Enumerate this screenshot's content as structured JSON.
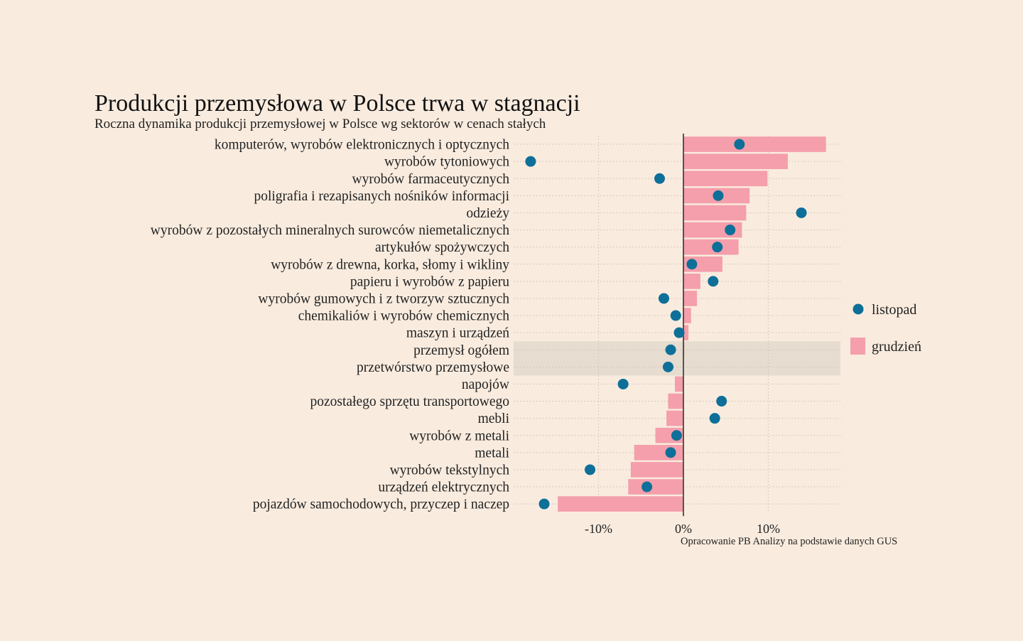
{
  "chart_data": {
    "type": "bar",
    "title": "Produkcji przemysłowa w Polsce trwa w stagnacji",
    "subtitle": "Roczna dynamika produkcji przemysłowej w Polsce wg sektorów w cenach stałych",
    "source": "Opracowanie PB Analizy na podstawie danych GUS",
    "xlim": [
      -20,
      18.5
    ],
    "xticks": [
      -10,
      0,
      10
    ],
    "xtick_labels": [
      "-10%",
      "0%",
      "10%"
    ],
    "grid": true,
    "legend_position": "right",
    "highlighted_categories": [
      "przemysł ogółem",
      "przetwórstwo przemysłowe"
    ],
    "colors": {
      "grudzien": "#f49fab",
      "listopad": "#0e6f98",
      "highlight": "#e6dcd0"
    },
    "categories": [
      "komputerów, wyrobów elektronicznych i optycznych",
      "wyrobów tytoniowych",
      "wyrobów farmaceutycznych",
      "poligrafia i rezapisanych nośników informacji",
      "odzieży",
      "wyrobów z pozostałych mineralnych surowców niemetalicznych",
      "artykułów spożywczych",
      "wyrobów z drewna, korka, słomy i wikliny",
      "papieru i wyrobów z papieru",
      "wyrobów gumowych i z tworzyw sztucznych",
      "chemikaliów i wyrobów chemicznych",
      "maszyn i urządzeń",
      "przemysł ogółem",
      "przetwórstwo przemysłowe",
      "napojów",
      "pozostałego sprzętu transportowego",
      "mebli",
      "wyrobów z metali",
      "metali",
      "wyrobów tekstylnych",
      "urządzeń elektrycznych",
      "pojazdów samochodowych, przyczep i naczep"
    ],
    "series": [
      {
        "name": "grudzień",
        "type": "bar",
        "values": [
          16.8,
          12.3,
          9.9,
          7.8,
          7.4,
          6.9,
          6.5,
          4.6,
          2.0,
          1.6,
          0.9,
          0.6,
          0.1,
          0.0,
          -1.0,
          -1.8,
          -2.0,
          -3.3,
          -5.8,
          -6.2,
          -6.5,
          -14.8
        ]
      },
      {
        "name": "listopad",
        "type": "scatter",
        "values": [
          6.6,
          -18.0,
          -2.8,
          4.1,
          13.9,
          5.5,
          4.0,
          1.0,
          3.5,
          -2.3,
          -0.9,
          -0.5,
          -1.5,
          -1.8,
          -7.1,
          4.5,
          3.7,
          -0.8,
          -1.5,
          -11.0,
          -4.3,
          -16.4
        ]
      }
    ]
  }
}
